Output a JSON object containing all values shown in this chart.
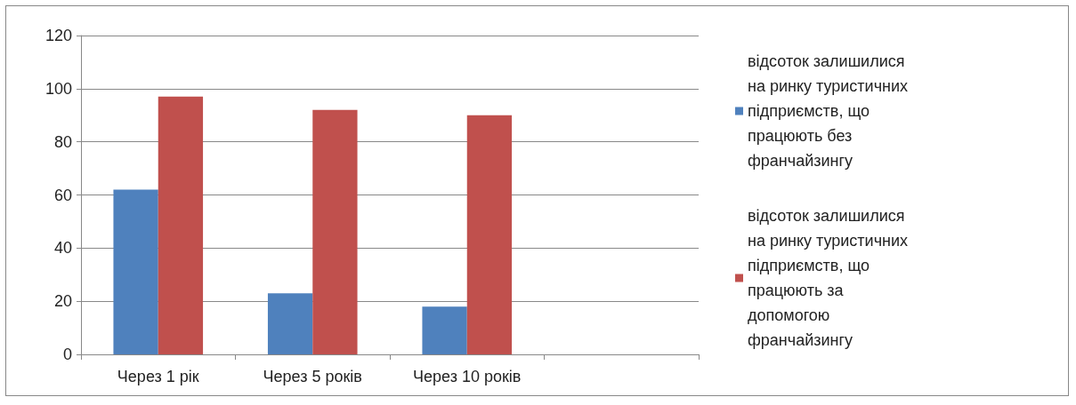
{
  "chart_data": {
    "type": "bar",
    "categories": [
      "Через 1 рік",
      "Через 5 років",
      "Через 10 років",
      null
    ],
    "series": [
      {
        "name": "відсоток залишилися на ринку туристичних підприємств, що працюють без франчайзингу",
        "color": "#4f81bd",
        "values": [
          62,
          23,
          18,
          null
        ]
      },
      {
        "name": "відсоток залишилися на ринку туристичних підприємств, що працюють за допомогою франчайзингу",
        "color": "#c0504d",
        "values": [
          97,
          92,
          90,
          null
        ]
      }
    ],
    "ylim": [
      0,
      120
    ],
    "yticks": [
      0,
      20,
      40,
      60,
      80,
      100,
      120
    ],
    "grid": "y",
    "legend": "right"
  }
}
